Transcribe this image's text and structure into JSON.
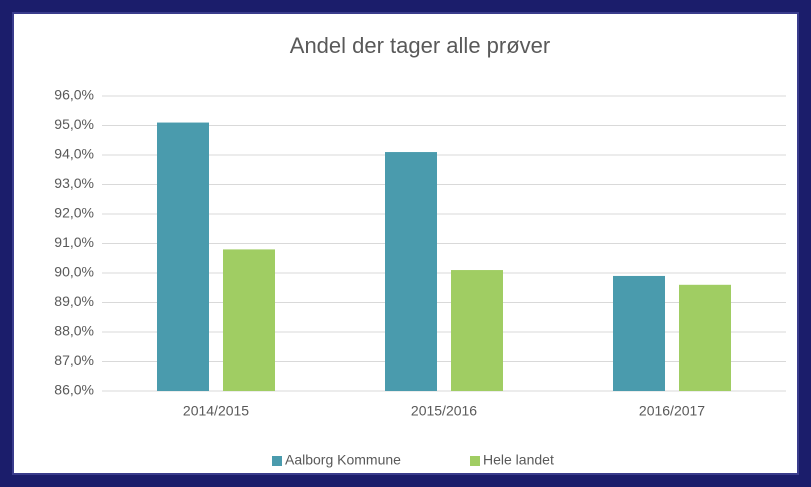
{
  "chart_data": {
    "type": "bar",
    "title": "Andel der tager alle prøver",
    "categories": [
      "2014/2015",
      "2015/2016",
      "2016/2017"
    ],
    "series": [
      {
        "name": "Aalborg Kommune",
        "color": "#4a9bad",
        "values": [
          95.1,
          94.1,
          89.9
        ]
      },
      {
        "name": "Hele landet",
        "color": "#a0cd63",
        "values": [
          90.8,
          90.1,
          89.6
        ]
      }
    ],
    "ylim": [
      86,
      96
    ],
    "yticks": [
      {
        "value": 86,
        "label": "86,0%"
      },
      {
        "value": 87,
        "label": "87,0%"
      },
      {
        "value": 88,
        "label": "88,0%"
      },
      {
        "value": 89,
        "label": "89,0%"
      },
      {
        "value": 90,
        "label": "90,0%"
      },
      {
        "value": 91,
        "label": "91,0%"
      },
      {
        "value": 92,
        "label": "92,0%"
      },
      {
        "value": 93,
        "label": "93,0%"
      },
      {
        "value": 94,
        "label": "94,0%"
      },
      {
        "value": 95,
        "label": "95,0%"
      },
      {
        "value": 96,
        "label": "96,0%"
      }
    ],
    "grid": true,
    "legend": "bottom"
  }
}
